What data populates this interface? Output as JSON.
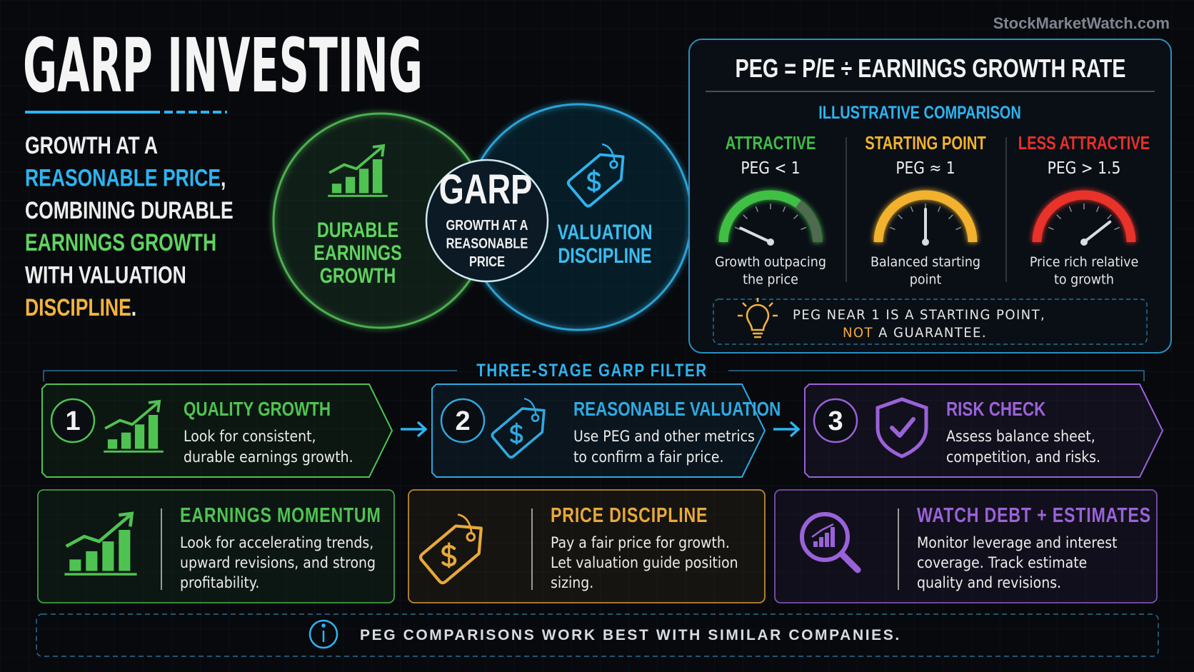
{
  "watermark": "StockMarketWatch.com",
  "header": {
    "title": "GARP INVESTING"
  },
  "intro": [
    [
      {
        "text": "GROWTH AT A",
        "color": "#eeeeee"
      }
    ],
    [
      {
        "text": "REASONABLE PRICE",
        "color": "#2db4f0"
      },
      {
        "text": ",",
        "color": "#eeeeee"
      }
    ],
    [
      {
        "text": "COMBINING DURABLE",
        "color": "#eeeeee"
      }
    ],
    [
      {
        "text": "EARNINGS GROWTH",
        "color": "#5fd35f"
      }
    ],
    [
      {
        "text": "WITH VALUATION",
        "color": "#eeeeee"
      }
    ],
    [
      {
        "text": "DISCIPLINE",
        "color": "#f2b33d"
      },
      {
        "text": ".",
        "color": "#eeeeee"
      }
    ]
  ],
  "venn": {
    "left": [
      "DURABLE",
      "EARNINGS",
      "GROWTH"
    ],
    "center_title": "GARP",
    "center": [
      "GROWTH AT A",
      "REASONABLE",
      "PRICE"
    ],
    "right": [
      "VALUATION",
      "DISCIPLINE"
    ]
  },
  "peg": {
    "formula": "PEG = P/E ÷ EARNINGS GROWTH RATE",
    "subtitle": "ILLUSTRATIVE COMPARISON",
    "gauges": [
      {
        "label": "ATTRACTIVE",
        "peg": "PEG < 1",
        "caption": [
          "Growth outpacing",
          "the price"
        ],
        "color": "#3fbf45"
      },
      {
        "label": "STARTING POINT",
        "peg": "PEG ≈ 1",
        "caption": [
          "Balanced starting",
          "point"
        ],
        "color": "#f2b22e"
      },
      {
        "label": "LESS ATTRACTIVE",
        "peg": "PEG > 1.5",
        "caption": [
          "Price rich relative",
          "to growth"
        ],
        "color": "#e8302a"
      }
    ],
    "note": [
      [
        {
          "text": "PEG NEAR 1 IS A STARTING POINT,",
          "color": "#e6e6e6"
        }
      ],
      [
        {
          "text": "NOT",
          "color": "#f2a93b"
        },
        {
          "text": " A GUARANTEE.",
          "color": "#e6e6e6"
        }
      ]
    ]
  },
  "filter": {
    "title": "THREE-STAGE GARP FILTER",
    "stages": [
      {
        "number": "1",
        "title": "QUALITY GROWTH",
        "text": [
          "Look for consistent,",
          "durable earnings growth."
        ],
        "color": "#4fc352"
      },
      {
        "number": "2",
        "title": "REASONABLE VALUATION",
        "text": [
          "Use PEG and other metrics",
          "to confirm a fair price."
        ],
        "color": "#2fa9e0"
      },
      {
        "number": "3",
        "title": "RISK CHECK",
        "text": [
          "Assess balance sheet,",
          "competition, and risks."
        ],
        "color": "#9a62d8"
      }
    ]
  },
  "cards": [
    {
      "title": "EARNINGS MOMENTUM",
      "text": [
        "Look for accelerating trends,",
        "upward revisions, and strong",
        "profitability."
      ],
      "color": "#4fc352"
    },
    {
      "title": "PRICE DISCIPLINE",
      "text": [
        "Pay a fair price for growth.",
        "Let valuation guide position",
        "sizing."
      ],
      "color": "#e8a93a"
    },
    {
      "title": "WATCH DEBT + ESTIMATES",
      "text": [
        "Monitor leverage and interest",
        "coverage. Track estimate",
        "quality and revisions."
      ],
      "color": "#9a62d8"
    }
  ],
  "footer": "PEG COMPARISONS WORK BEST WITH SIMILAR COMPANIES."
}
